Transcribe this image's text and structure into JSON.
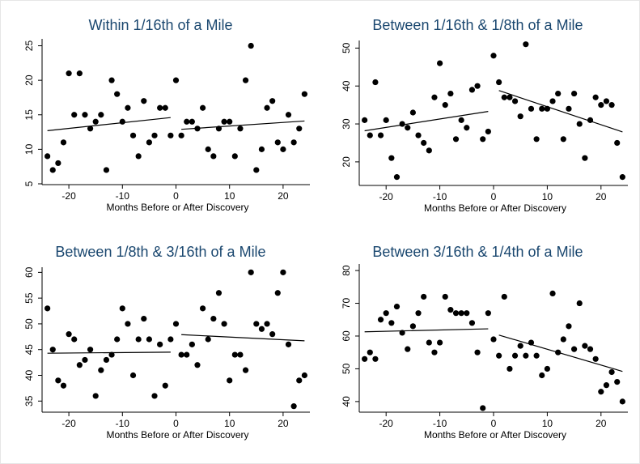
{
  "chart_data": [
    {
      "type": "scatter",
      "title": "Within 1/16th of a Mile",
      "xlabel": "Months Before or After Discovery",
      "ylabel": "",
      "xlim": [
        -25,
        25
      ],
      "ylim": [
        5,
        26
      ],
      "xticks": [
        -20,
        -10,
        0,
        10,
        20
      ],
      "yticks": [
        5,
        10,
        15,
        20,
        25
      ],
      "points": [
        [
          -24,
          9
        ],
        [
          -23,
          7
        ],
        [
          -22,
          8
        ],
        [
          -21,
          11
        ],
        [
          -20,
          21
        ],
        [
          -19,
          15
        ],
        [
          -18,
          21
        ],
        [
          -17,
          15
        ],
        [
          -16,
          13
        ],
        [
          -15,
          14
        ],
        [
          -14,
          15
        ],
        [
          -13,
          7
        ],
        [
          -12,
          20
        ],
        [
          -11,
          18
        ],
        [
          -10,
          14
        ],
        [
          -9,
          16
        ],
        [
          -8,
          12
        ],
        [
          -7,
          9
        ],
        [
          -6,
          17
        ],
        [
          -5,
          11
        ],
        [
          -4,
          12
        ],
        [
          -3,
          16
        ],
        [
          -2,
          16
        ],
        [
          -1,
          12
        ],
        [
          0,
          20
        ],
        [
          1,
          12
        ],
        [
          2,
          14
        ],
        [
          3,
          14
        ],
        [
          4,
          13
        ],
        [
          5,
          16
        ],
        [
          6,
          10
        ],
        [
          7,
          9
        ],
        [
          8,
          13
        ],
        [
          9,
          14
        ],
        [
          10,
          14
        ],
        [
          11,
          9
        ],
        [
          12,
          13
        ],
        [
          13,
          20
        ],
        [
          14,
          25
        ],
        [
          15,
          7
        ],
        [
          16,
          10
        ],
        [
          17,
          16
        ],
        [
          18,
          17
        ],
        [
          19,
          11
        ],
        [
          20,
          10
        ],
        [
          21,
          15
        ],
        [
          22,
          11
        ],
        [
          23,
          13
        ],
        [
          24,
          18
        ]
      ],
      "fit_lines": [
        {
          "x": [
            -24,
            -1
          ],
          "y": [
            12.7,
            14.6
          ]
        },
        {
          "x": [
            1,
            24
          ],
          "y": [
            12.9,
            14.1
          ]
        }
      ],
      "grid": false
    },
    {
      "type": "scatter",
      "title": "Between 1/16th & 1/8th of a Mile",
      "xlabel": "Months Before or After Discovery",
      "ylabel": "",
      "xlim": [
        -25,
        25
      ],
      "ylim": [
        14,
        52
      ],
      "xticks": [
        -20,
        -10,
        0,
        10,
        20
      ],
      "yticks": [
        20,
        30,
        40,
        50
      ],
      "points": [
        [
          -24,
          31
        ],
        [
          -23,
          27
        ],
        [
          -22,
          41
        ],
        [
          -21,
          27
        ],
        [
          -20,
          31
        ],
        [
          -19,
          21
        ],
        [
          -18,
          16
        ],
        [
          -17,
          30
        ],
        [
          -16,
          29
        ],
        [
          -15,
          33
        ],
        [
          -14,
          27
        ],
        [
          -13,
          25
        ],
        [
          -12,
          23
        ],
        [
          -11,
          37
        ],
        [
          -10,
          46
        ],
        [
          -9,
          35
        ],
        [
          -8,
          38
        ],
        [
          -7,
          26
        ],
        [
          -6,
          31
        ],
        [
          -5,
          29
        ],
        [
          -4,
          39
        ],
        [
          -3,
          40
        ],
        [
          -2,
          26
        ],
        [
          -1,
          28
        ],
        [
          0,
          48
        ],
        [
          1,
          41
        ],
        [
          2,
          37
        ],
        [
          3,
          37
        ],
        [
          4,
          36
        ],
        [
          5,
          32
        ],
        [
          6,
          51
        ],
        [
          7,
          34
        ],
        [
          8,
          26
        ],
        [
          9,
          34
        ],
        [
          10,
          34
        ],
        [
          11,
          36
        ],
        [
          12,
          38
        ],
        [
          13,
          26
        ],
        [
          14,
          34
        ],
        [
          15,
          38
        ],
        [
          16,
          30
        ],
        [
          17,
          21
        ],
        [
          18,
          31
        ],
        [
          19,
          37
        ],
        [
          20,
          35
        ],
        [
          21,
          36
        ],
        [
          22,
          35
        ],
        [
          23,
          25
        ],
        [
          24,
          16
        ]
      ],
      "fit_lines": [
        {
          "x": [
            -24,
            -1
          ],
          "y": [
            28.2,
            33.3
          ]
        },
        {
          "x": [
            1,
            24
          ],
          "y": [
            38.8,
            27.9
          ]
        }
      ],
      "grid": false
    },
    {
      "type": "scatter",
      "title": "Between 1/8th & 3/16th of a Mile",
      "xlabel": "Months Before or After Discovery",
      "ylabel": "",
      "xlim": [
        -25,
        25
      ],
      "ylim": [
        33,
        61
      ],
      "xticks": [
        -20,
        -10,
        0,
        10,
        20
      ],
      "yticks": [
        35,
        40,
        45,
        50,
        55,
        60
      ],
      "points": [
        [
          -24,
          53
        ],
        [
          -23,
          45
        ],
        [
          -22,
          39
        ],
        [
          -21,
          38
        ],
        [
          -20,
          48
        ],
        [
          -19,
          47
        ],
        [
          -18,
          42
        ],
        [
          -17,
          43
        ],
        [
          -16,
          45
        ],
        [
          -15,
          36
        ],
        [
          -14,
          41
        ],
        [
          -13,
          43
        ],
        [
          -12,
          44
        ],
        [
          -11,
          47
        ],
        [
          -10,
          53
        ],
        [
          -9,
          50
        ],
        [
          -8,
          40
        ],
        [
          -7,
          47
        ],
        [
          -6,
          51
        ],
        [
          -5,
          47
        ],
        [
          -4,
          36
        ],
        [
          -3,
          46
        ],
        [
          -2,
          38
        ],
        [
          -1,
          47
        ],
        [
          0,
          50
        ],
        [
          1,
          44
        ],
        [
          2,
          44
        ],
        [
          3,
          46
        ],
        [
          4,
          42
        ],
        [
          5,
          53
        ],
        [
          6,
          47
        ],
        [
          7,
          51
        ],
        [
          8,
          56
        ],
        [
          9,
          50
        ],
        [
          10,
          39
        ],
        [
          11,
          44
        ],
        [
          12,
          44
        ],
        [
          13,
          41
        ],
        [
          14,
          60
        ],
        [
          15,
          50
        ],
        [
          16,
          49
        ],
        [
          17,
          50
        ],
        [
          18,
          48
        ],
        [
          19,
          56
        ],
        [
          20,
          60
        ],
        [
          21,
          46
        ],
        [
          22,
          34
        ],
        [
          23,
          39
        ],
        [
          24,
          40
        ]
      ],
      "fit_lines": [
        {
          "x": [
            -24,
            -1
          ],
          "y": [
            44.3,
            44.5
          ]
        },
        {
          "x": [
            1,
            24
          ],
          "y": [
            47.9,
            46.7
          ]
        }
      ],
      "grid": false
    },
    {
      "type": "scatter",
      "title": "Between 3/16th & 1/4th of a Mile",
      "xlabel": "Months Before or After Discovery",
      "ylabel": "",
      "xlim": [
        -25,
        25
      ],
      "ylim": [
        37,
        82
      ],
      "xticks": [
        -20,
        -10,
        0,
        10,
        20
      ],
      "yticks": [
        40,
        50,
        60,
        70,
        80
      ],
      "points": [
        [
          -24,
          53
        ],
        [
          -23,
          55
        ],
        [
          -22,
          53
        ],
        [
          -21,
          65
        ],
        [
          -20,
          67
        ],
        [
          -19,
          64
        ],
        [
          -18,
          69
        ],
        [
          -17,
          61
        ],
        [
          -16,
          56
        ],
        [
          -15,
          63
        ],
        [
          -14,
          67
        ],
        [
          -13,
          72
        ],
        [
          -12,
          58
        ],
        [
          -11,
          55
        ],
        [
          -10,
          58
        ],
        [
          -9,
          72
        ],
        [
          -8,
          68
        ],
        [
          -7,
          67
        ],
        [
          -6,
          67
        ],
        [
          -5,
          67
        ],
        [
          -4,
          64
        ],
        [
          -3,
          55
        ],
        [
          -2,
          38
        ],
        [
          -1,
          67
        ],
        [
          0,
          59
        ],
        [
          1,
          54
        ],
        [
          2,
          72
        ],
        [
          3,
          50
        ],
        [
          4,
          54
        ],
        [
          5,
          57
        ],
        [
          6,
          54
        ],
        [
          7,
          58
        ],
        [
          8,
          54
        ],
        [
          9,
          48
        ],
        [
          10,
          50
        ],
        [
          11,
          73
        ],
        [
          12,
          55
        ],
        [
          13,
          59
        ],
        [
          14,
          63
        ],
        [
          15,
          56
        ],
        [
          16,
          70
        ],
        [
          17,
          57
        ],
        [
          18,
          56
        ],
        [
          19,
          53
        ],
        [
          20,
          43
        ],
        [
          21,
          45
        ],
        [
          22,
          49
        ],
        [
          23,
          46
        ],
        [
          24,
          40
        ]
      ],
      "fit_lines": [
        {
          "x": [
            -24,
            -1
          ],
          "y": [
            61.3,
            62.2
          ]
        },
        {
          "x": [
            1,
            24
          ],
          "y": [
            60.3,
            49.2
          ]
        }
      ],
      "grid": false
    }
  ]
}
